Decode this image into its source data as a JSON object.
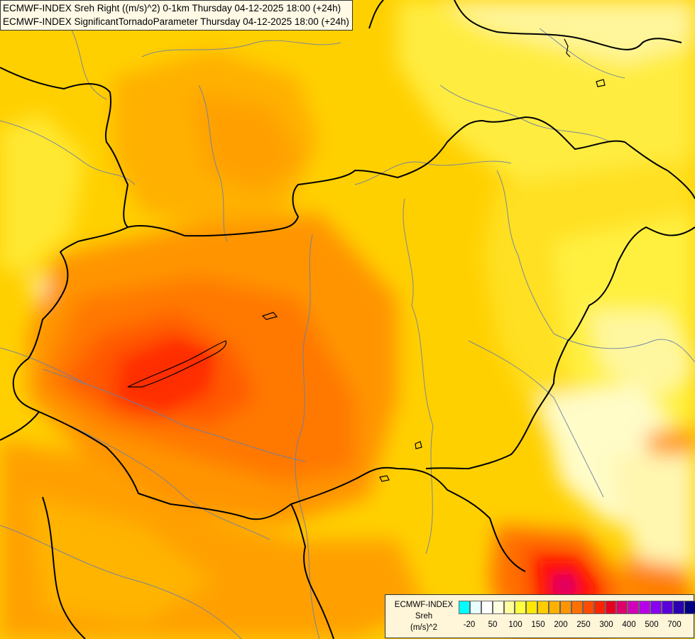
{
  "title": {
    "line1": "ECMWF-INDEX Sreh Right ((m/s)^2) 0-1km Thursday 04-12-2025 18:00 (+24h)",
    "line2": "ECMWF-INDEX SignificantTornadoParameter Thursday 04-12-2025 18:00 (+24h)"
  },
  "legend": {
    "line1": "ECMWF-INDEX",
    "line2": "Sreh",
    "line3": "(m/s)^2",
    "colors": [
      "#00ffff",
      "#e8ffff",
      "#ffffff",
      "#ffffe0",
      "#ffff9c",
      "#ffff40",
      "#ffe800",
      "#ffcc00",
      "#ffb000",
      "#ff9400",
      "#ff7000",
      "#ff4c00",
      "#ff2400",
      "#e80020",
      "#e0006c",
      "#d000b8",
      "#b800e8",
      "#8a00f0",
      "#5a00d8",
      "#2a00b0",
      "#000080"
    ],
    "ticks": [
      "-20",
      "50",
      "100",
      "150",
      "200",
      "250",
      "300",
      "400",
      "500",
      "700"
    ]
  }
}
